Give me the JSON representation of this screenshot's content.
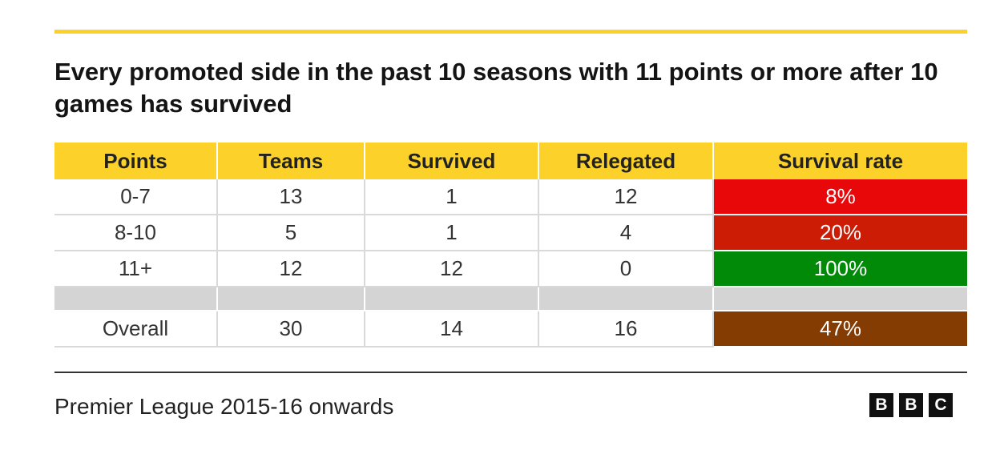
{
  "title": "Every promoted side in the past 10 seasons with 11 points or more after 10 games has survived",
  "source": "Premier League 2015-16 onwards",
  "logo": {
    "letters": [
      "B",
      "B",
      "C"
    ]
  },
  "colors": {
    "accent": "#fcd22a",
    "rate_colors": [
      "#e8080a",
      "#cc1c05",
      "#008a08",
      "#853c02"
    ]
  },
  "chart_data": {
    "type": "table",
    "title": "Every promoted side in the past 10 seasons with 11 points or more after 10 games has survived",
    "columns": [
      "Points",
      "Teams",
      "Survived",
      "Relegated",
      "Survival rate"
    ],
    "rows": [
      [
        "0-7",
        "13",
        "1",
        "12",
        "8%"
      ],
      [
        "8-10",
        "5",
        "1",
        "4",
        "20%"
      ],
      [
        "11+",
        "12",
        "12",
        "0",
        "100%"
      ],
      [
        "Overall",
        "30",
        "14",
        "16",
        "47%"
      ]
    ]
  }
}
